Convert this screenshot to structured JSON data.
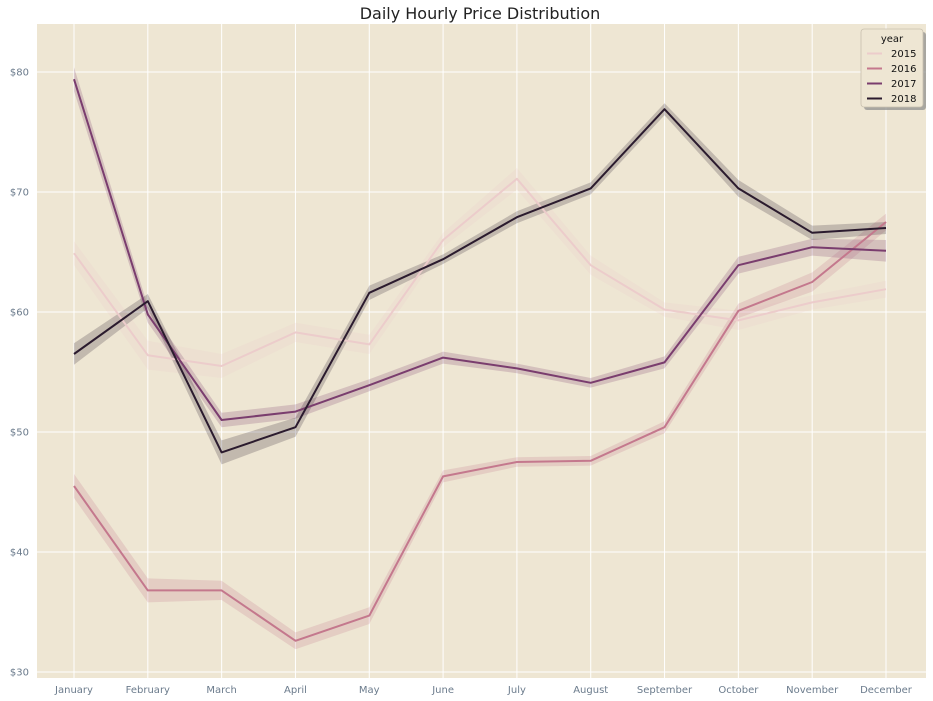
{
  "chart_data": {
    "type": "line",
    "title": "Daily Hourly Price Distribution",
    "xlabel": "",
    "ylabel": "",
    "categories": [
      "January",
      "February",
      "March",
      "April",
      "May",
      "June",
      "July",
      "August",
      "September",
      "October",
      "November",
      "December"
    ],
    "ylim": [
      29.5,
      84
    ],
    "yticks": [
      30,
      40,
      50,
      60,
      70,
      80
    ],
    "ytick_labels": [
      "$30",
      "$40",
      "$50",
      "$60",
      "$70",
      "$80"
    ],
    "grid": true,
    "legend": {
      "title": "year",
      "placement": "top-right"
    },
    "series": [
      {
        "name": "2015",
        "color": "#eccccb",
        "values": [
          64.9,
          56.4,
          55.5,
          58.3,
          57.3,
          66.0,
          71.1,
          63.9,
          60.2,
          59.3,
          60.8,
          61.9
        ],
        "ci": [
          1.0,
          1.2,
          1.0,
          0.8,
          0.8,
          0.6,
          0.9,
          0.8,
          0.6,
          0.8,
          0.6,
          0.7
        ]
      },
      {
        "name": "2016",
        "color": "#c4788d",
        "values": [
          45.5,
          36.8,
          36.8,
          32.6,
          34.7,
          46.3,
          47.5,
          47.6,
          50.4,
          60.1,
          62.5,
          67.5
        ],
        "ci": [
          1.0,
          1.0,
          0.8,
          0.7,
          0.7,
          0.5,
          0.4,
          0.4,
          0.5,
          0.6,
          0.8,
          0.7
        ]
      },
      {
        "name": "2017",
        "color": "#7a3d6e",
        "values": [
          79.4,
          59.8,
          51.0,
          51.7,
          53.9,
          56.2,
          55.3,
          54.1,
          55.8,
          63.9,
          65.4,
          65.1
        ],
        "ci": [
          1.0,
          0.7,
          0.6,
          0.6,
          0.5,
          0.5,
          0.4,
          0.4,
          0.5,
          0.7,
          0.7,
          0.9
        ]
      },
      {
        "name": "2018",
        "color": "#2b1b2e",
        "values": [
          56.5,
          60.9,
          48.3,
          50.4,
          61.6,
          64.4,
          67.9,
          70.3,
          76.9,
          70.3,
          66.6,
          67.0
        ],
        "ci": [
          0.9,
          0.6,
          1.0,
          0.8,
          0.6,
          0.4,
          0.5,
          0.5,
          0.5,
          0.7,
          0.6,
          0.5
        ]
      }
    ]
  }
}
